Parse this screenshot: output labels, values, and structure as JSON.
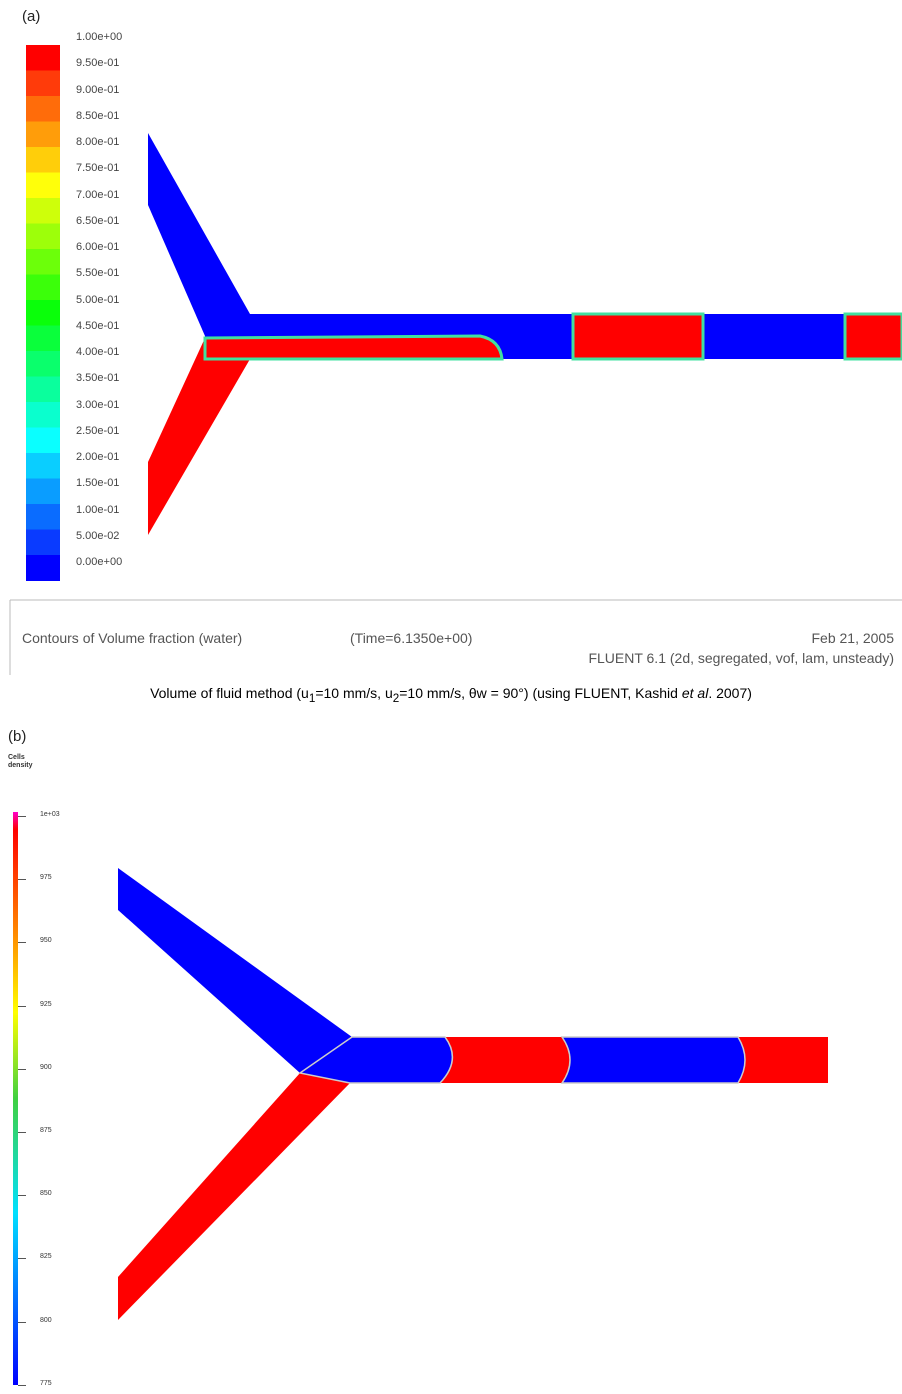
{
  "panel_a": {
    "label": "(a)",
    "colorbar_labels": [
      "1.00e+00",
      "9.50e-01",
      "9.00e-01",
      "8.50e-01",
      "8.00e-01",
      "7.50e-01",
      "7.00e-01",
      "6.50e-01",
      "6.00e-01",
      "5.50e-01",
      "5.00e-01",
      "4.50e-01",
      "4.00e-01",
      "3.50e-01",
      "3.00e-01",
      "2.50e-01",
      "2.00e-01",
      "1.50e-01",
      "1.00e-01",
      "5.00e-02",
      "0.00e+00"
    ],
    "footer_title": "Contours of Volume fraction (water)",
    "footer_time": "(Time=6.1350e+00)",
    "footer_date": "Feb 21, 2005",
    "footer_solver": "FLUENT 6.1 (2d, segregated, vof, lam, unsteady)"
  },
  "caption": {
    "parts": [
      "Volume of fluid method (u",
      "1",
      "=10 mm/s, u",
      "2",
      "=10 mm/s, θw = 90°) (using FLUENT, Kashid ",
      "et al",
      ". 2007)"
    ]
  },
  "panel_b": {
    "label": "(b)",
    "colorbar_title": "Cells density",
    "colorbar_labels": [
      "1e+03",
      "975",
      "950",
      "925",
      "900",
      "875",
      "850",
      "825",
      "800",
      "775"
    ]
  }
}
